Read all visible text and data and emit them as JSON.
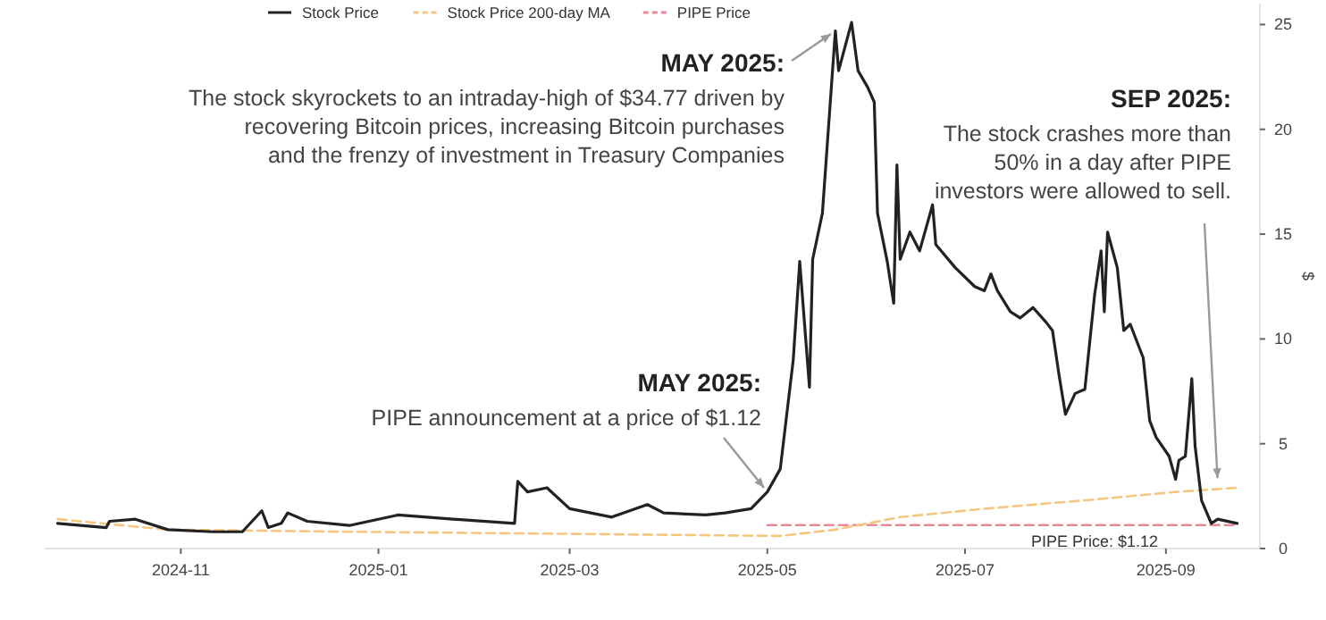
{
  "chart_data": {
    "type": "line",
    "ylabel": "$",
    "legend": "top",
    "grid": false,
    "xlim": [
      "2024-09-20",
      "2025-09-30"
    ],
    "xticks": [
      {
        "value": "2024-11-01",
        "label": "2024-11"
      },
      {
        "value": "2025-01-01",
        "label": "2025-01"
      },
      {
        "value": "2025-03-01",
        "label": "2025-03"
      },
      {
        "value": "2025-05-01",
        "label": "2025-05"
      },
      {
        "value": "2025-07-01",
        "label": "2025-07"
      },
      {
        "value": "2025-09-01",
        "label": "2025-09"
      }
    ],
    "ylim": [
      0,
      26
    ],
    "yticks": [
      0,
      5,
      10,
      15,
      20,
      25
    ],
    "series": [
      {
        "name": "Stock Price",
        "color": "#222222",
        "line_style": "solid",
        "x": [
          "2024-09-24",
          "2024-10-09",
          "2024-10-10",
          "2024-10-18",
          "2024-10-28",
          "2024-11-11",
          "2024-11-20",
          "2024-11-26",
          "2024-11-28",
          "2024-12-02",
          "2024-12-04",
          "2024-12-10",
          "2024-12-23",
          "2025-01-07",
          "2025-01-24",
          "2025-02-12",
          "2025-02-13",
          "2025-02-16",
          "2025-02-22",
          "2025-03-01",
          "2025-03-14",
          "2025-03-25",
          "2025-03-30",
          "2025-04-12",
          "2025-04-18",
          "2025-04-26",
          "2025-05-01",
          "2025-05-05",
          "2025-05-09",
          "2025-05-11",
          "2025-05-14",
          "2025-05-15",
          "2025-05-18",
          "2025-05-22",
          "2025-05-23",
          "2025-05-27",
          "2025-05-29",
          "2025-06-01",
          "2025-06-03",
          "2025-06-04",
          "2025-06-07",
          "2025-06-09",
          "2025-06-10",
          "2025-06-11",
          "2025-06-14",
          "2025-06-17",
          "2025-06-21",
          "2025-06-22",
          "2025-06-28",
          "2025-07-04",
          "2025-07-07",
          "2025-07-09",
          "2025-07-11",
          "2025-07-15",
          "2025-07-18",
          "2025-07-22",
          "2025-07-26",
          "2025-07-28",
          "2025-07-30",
          "2025-08-01",
          "2025-08-04",
          "2025-08-07",
          "2025-08-10",
          "2025-08-12",
          "2025-08-13",
          "2025-08-14",
          "2025-08-17",
          "2025-08-19",
          "2025-08-21",
          "2025-08-25",
          "2025-08-27",
          "2025-08-29",
          "2025-09-02",
          "2025-09-04",
          "2025-09-05",
          "2025-09-07",
          "2025-09-09",
          "2025-09-10",
          "2025-09-12",
          "2025-09-15",
          "2025-09-17",
          "2025-09-23"
        ],
        "values": [
          1.2,
          1.0,
          1.3,
          1.4,
          0.9,
          0.8,
          0.8,
          1.8,
          1.0,
          1.2,
          1.7,
          1.3,
          1.1,
          1.6,
          1.4,
          1.2,
          3.2,
          2.7,
          2.9,
          1.9,
          1.5,
          2.1,
          1.7,
          1.6,
          1.7,
          1.9,
          2.7,
          3.8,
          9,
          13.7,
          7.7,
          13.8,
          16,
          24.7,
          22.8,
          25.1,
          22.8,
          22,
          21.3,
          16,
          13.7,
          11.7,
          18.3,
          13.8,
          15.1,
          14.2,
          16.4,
          14.5,
          13.4,
          12.5,
          12.3,
          13.1,
          12.3,
          11.3,
          11.0,
          11.5,
          10.8,
          10.4,
          8.3,
          6.4,
          7.4,
          7.6,
          12.1,
          14.2,
          11.3,
          15.1,
          13.4,
          10.4,
          10.7,
          9.1,
          6.1,
          5.3,
          4.4,
          3.3,
          4.2,
          4.4,
          8.1,
          4.9,
          2.3,
          1.2,
          1.4,
          1.2
        ]
      },
      {
        "name": "Stock Price 200-day MA",
        "color": "#f5c77e",
        "line_style": "dashed",
        "x": [
          "2024-09-24",
          "2024-10-28",
          "2024-12-23",
          "2025-03-01",
          "2025-05-05",
          "2025-05-22",
          "2025-06-11",
          "2025-07-07",
          "2025-08-07",
          "2025-09-04",
          "2025-09-23"
        ],
        "values": [
          1.4,
          0.9,
          0.8,
          0.7,
          0.6,
          0.9,
          1.5,
          1.9,
          2.3,
          2.7,
          2.9
        ]
      },
      {
        "name": "PIPE Price",
        "color": "#e88a9a",
        "line_style": "dashed",
        "x": [
          "2025-05-01",
          "2025-09-23"
        ],
        "values": [
          1.12,
          1.12
        ]
      }
    ],
    "annotations": [
      {
        "text": "MAY 2025:\nThe stock skyrockets to an intraday-high of $34.77 driven by\nrecovering Bitcoin prices, increasing Bitcoin purchases\nand the frenzy of investment in Treasury Companies",
        "x": "2025-05-22",
        "y": 24.7
      },
      {
        "text": "MAY 2025:\nPIPE announcement at a price of $1.12",
        "x": "2025-05-01",
        "y": 2.7
      },
      {
        "text": "SEP 2025:\nThe stock crashes more than\n50% in a day after PIPE\ninvestors were allowed to sell.",
        "x": "2025-09-17",
        "y": 3.1
      },
      {
        "text": "PIPE Price: $1.12",
        "x": "2025-08-10",
        "y": 1.12
      }
    ]
  }
}
